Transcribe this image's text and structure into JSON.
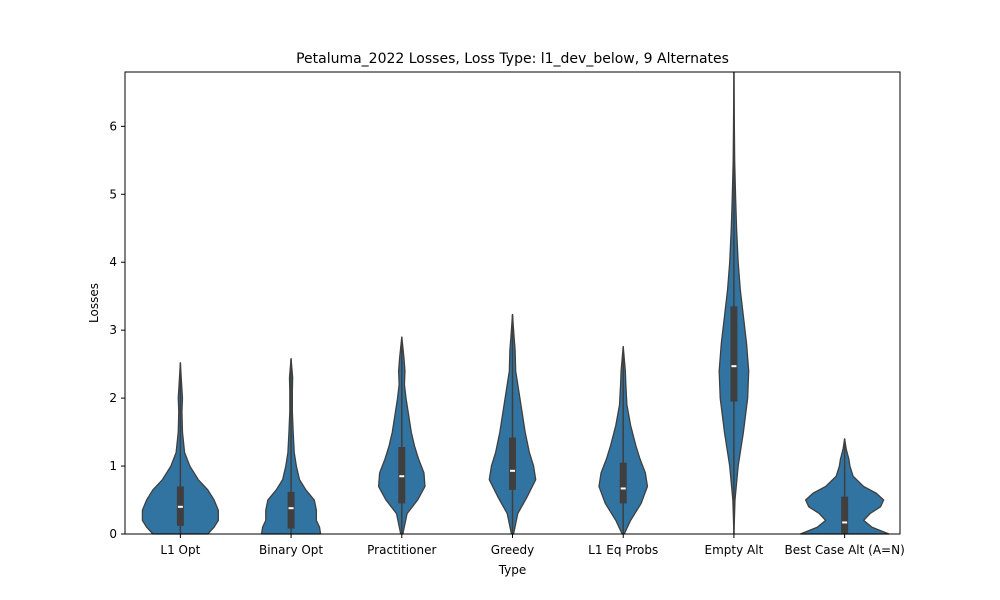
{
  "chart_data": {
    "type": "violin",
    "title": "Petaluma_2022 Losses, Loss Type: l1_dev_below, 9 Alternates",
    "xlabel": "Type",
    "ylabel": "Losses",
    "ylim": [
      0,
      6.8
    ],
    "yticks": [
      0,
      1,
      2,
      3,
      4,
      5,
      6
    ],
    "grid": false,
    "color": "#3274a1",
    "edge_color": "#3f3f3f",
    "categories": [
      {
        "label": "L1 Opt",
        "min": 0,
        "max": 2.52,
        "q1": 0.12,
        "median": 0.4,
        "q3": 0.7,
        "profile": [
          [
            0,
            0.26
          ],
          [
            0.1,
            0.32
          ],
          [
            0.2,
            0.36
          ],
          [
            0.35,
            0.36
          ],
          [
            0.5,
            0.32
          ],
          [
            0.65,
            0.26
          ],
          [
            0.8,
            0.17
          ],
          [
            1.0,
            0.09
          ],
          [
            1.2,
            0.04
          ],
          [
            1.5,
            0.02
          ],
          [
            1.8,
            0.015
          ],
          [
            2.0,
            0.02
          ],
          [
            2.2,
            0.012
          ],
          [
            2.52,
            0.0
          ]
        ]
      },
      {
        "label": "Binary Opt",
        "min": 0,
        "max": 2.58,
        "q1": 0.08,
        "median": 0.38,
        "q3": 0.62,
        "profile": [
          [
            0,
            0.28
          ],
          [
            0.1,
            0.27
          ],
          [
            0.2,
            0.24
          ],
          [
            0.35,
            0.24
          ],
          [
            0.5,
            0.22
          ],
          [
            0.65,
            0.14
          ],
          [
            0.8,
            0.08
          ],
          [
            1.0,
            0.05
          ],
          [
            1.2,
            0.03
          ],
          [
            1.5,
            0.02
          ],
          [
            1.8,
            0.012
          ],
          [
            2.1,
            0.012
          ],
          [
            2.3,
            0.015
          ],
          [
            2.58,
            0.0
          ]
        ]
      },
      {
        "label": "Practitioner",
        "min": 0,
        "max": 2.9,
        "q1": 0.45,
        "median": 0.85,
        "q3": 1.28,
        "profile": [
          [
            0,
            0.01
          ],
          [
            0.3,
            0.05
          ],
          [
            0.5,
            0.15
          ],
          [
            0.7,
            0.22
          ],
          [
            0.9,
            0.21
          ],
          [
            1.1,
            0.16
          ],
          [
            1.3,
            0.12
          ],
          [
            1.5,
            0.09
          ],
          [
            1.8,
            0.06
          ],
          [
            2.0,
            0.04
          ],
          [
            2.2,
            0.025
          ],
          [
            2.4,
            0.03
          ],
          [
            2.6,
            0.02
          ],
          [
            2.9,
            0.0
          ]
        ]
      },
      {
        "label": "Greedy",
        "min": 0,
        "max": 3.23,
        "q1": 0.65,
        "median": 0.93,
        "q3": 1.42,
        "profile": [
          [
            0,
            0.01
          ],
          [
            0.3,
            0.05
          ],
          [
            0.55,
            0.14
          ],
          [
            0.8,
            0.22
          ],
          [
            1.0,
            0.2
          ],
          [
            1.2,
            0.16
          ],
          [
            1.5,
            0.12
          ],
          [
            1.8,
            0.09
          ],
          [
            2.1,
            0.06
          ],
          [
            2.4,
            0.03
          ],
          [
            2.7,
            0.025
          ],
          [
            2.9,
            0.015
          ],
          [
            3.23,
            0.0
          ]
        ]
      },
      {
        "label": "L1 Eq Probs",
        "min": 0,
        "max": 2.76,
        "q1": 0.45,
        "median": 0.67,
        "q3": 1.05,
        "profile": [
          [
            0,
            0.01
          ],
          [
            0.2,
            0.07
          ],
          [
            0.45,
            0.17
          ],
          [
            0.7,
            0.23
          ],
          [
            0.9,
            0.21
          ],
          [
            1.1,
            0.16
          ],
          [
            1.3,
            0.12
          ],
          [
            1.6,
            0.07
          ],
          [
            1.9,
            0.035
          ],
          [
            2.2,
            0.025
          ],
          [
            2.4,
            0.02
          ],
          [
            2.76,
            0.0
          ]
        ]
      },
      {
        "label": "Empty Alt",
        "min": 0,
        "max": 6.8,
        "q1": 1.95,
        "median": 2.47,
        "q3": 3.35,
        "profile": [
          [
            0,
            0.0
          ],
          [
            0.5,
            0.01
          ],
          [
            1.0,
            0.04
          ],
          [
            1.5,
            0.09
          ],
          [
            2.0,
            0.13
          ],
          [
            2.4,
            0.14
          ],
          [
            2.8,
            0.12
          ],
          [
            3.2,
            0.09
          ],
          [
            3.6,
            0.06
          ],
          [
            4.0,
            0.04
          ],
          [
            4.5,
            0.025
          ],
          [
            5.0,
            0.015
          ],
          [
            5.5,
            0.007
          ],
          [
            6.0,
            0.004
          ],
          [
            6.8,
            0.0
          ]
        ]
      },
      {
        "label": "Best Case Alt (A=N)",
        "min": 0,
        "max": 1.4,
        "q1": 0.0,
        "median": 0.17,
        "q3": 0.55,
        "profile": [
          [
            0,
            0.42
          ],
          [
            0.1,
            0.26
          ],
          [
            0.2,
            0.18
          ],
          [
            0.3,
            0.24
          ],
          [
            0.4,
            0.34
          ],
          [
            0.5,
            0.37
          ],
          [
            0.6,
            0.3
          ],
          [
            0.7,
            0.18
          ],
          [
            0.85,
            0.08
          ],
          [
            1.0,
            0.05
          ],
          [
            1.1,
            0.04
          ],
          [
            1.25,
            0.015
          ],
          [
            1.4,
            0.0
          ]
        ]
      }
    ]
  }
}
